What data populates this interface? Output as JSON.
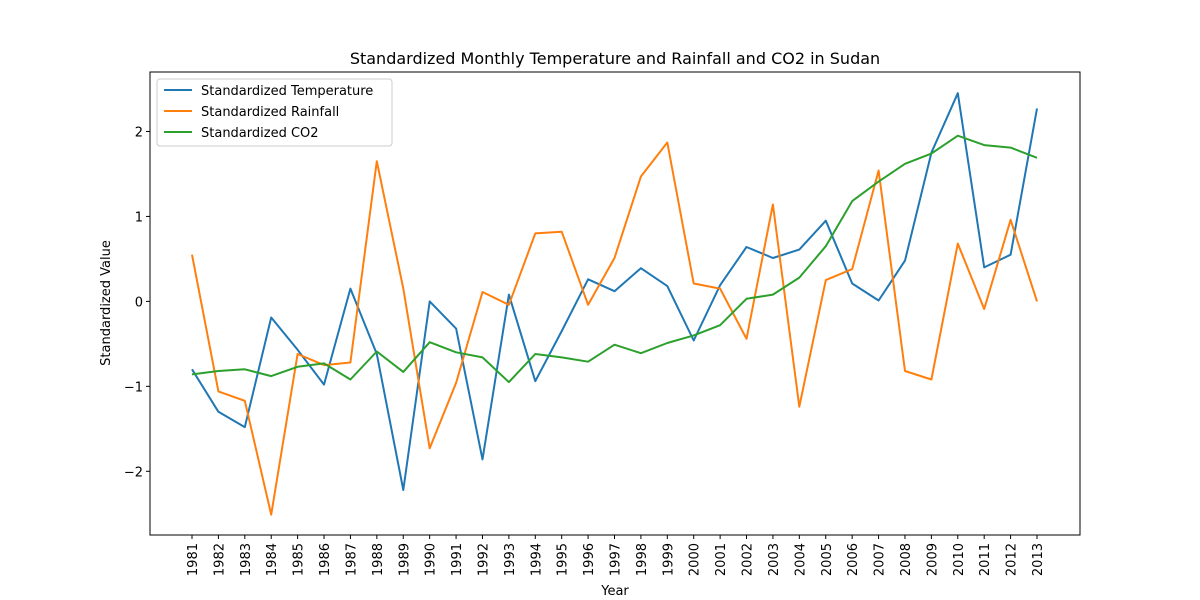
{
  "chart_data": {
    "type": "line",
    "title": "Standardized Monthly Temperature and Rainfall and CO2 in Sudan",
    "xlabel": "Year",
    "ylabel": "Standardized Value",
    "ylim": [
      -2.75,
      2.7
    ],
    "yticks": [
      {
        "value": -2,
        "label": "−2"
      },
      {
        "value": -1,
        "label": "−1"
      },
      {
        "value": 0,
        "label": "0"
      },
      {
        "value": 1,
        "label": "1"
      },
      {
        "value": 2,
        "label": "2"
      }
    ],
    "categories": [
      "1981",
      "1982",
      "1983",
      "1984",
      "1985",
      "1986",
      "1987",
      "1988",
      "1989",
      "1990",
      "1991",
      "1992",
      "1993",
      "1994",
      "1995",
      "1996",
      "1997",
      "1998",
      "1999",
      "2000",
      "2001",
      "2002",
      "2003",
      "2004",
      "2005",
      "2006",
      "2007",
      "2008",
      "2009",
      "2010",
      "2011",
      "2012",
      "2013"
    ],
    "legend_position": "upper-left",
    "grid": false,
    "series": [
      {
        "name": "Standardized Temperature",
        "color": "#1f77b4",
        "values": [
          -0.8,
          -1.3,
          -1.48,
          -0.19,
          -0.57,
          -0.98,
          0.15,
          -0.62,
          -2.22,
          0.0,
          -0.32,
          -1.86,
          0.08,
          -0.94,
          -0.35,
          0.26,
          0.12,
          0.39,
          0.18,
          -0.46,
          0.19,
          0.64,
          0.51,
          0.61,
          0.95,
          0.21,
          0.01,
          0.48,
          1.75,
          2.45,
          0.4,
          0.55,
          2.27
        ]
      },
      {
        "name": "Standardized Rainfall",
        "color": "#ff7f0e",
        "values": [
          0.55,
          -1.06,
          -1.17,
          -2.51,
          -0.62,
          -0.75,
          -0.72,
          1.65,
          0.15,
          -1.73,
          -0.96,
          0.11,
          -0.04,
          0.8,
          0.82,
          -0.04,
          0.51,
          1.47,
          1.87,
          0.21,
          0.15,
          -0.44,
          1.14,
          -1.24,
          0.25,
          0.38,
          1.54,
          -0.82,
          -0.92,
          0.68,
          -0.09,
          0.96,
          0.0
        ]
      },
      {
        "name": "Standardized CO2",
        "color": "#2ca02c",
        "values": [
          -0.86,
          -0.82,
          -0.8,
          -0.88,
          -0.77,
          -0.73,
          -0.92,
          -0.59,
          -0.83,
          -0.48,
          -0.6,
          -0.66,
          -0.95,
          -0.62,
          -0.66,
          -0.71,
          -0.51,
          -0.61,
          -0.49,
          -0.4,
          -0.28,
          0.03,
          0.08,
          0.28,
          0.65,
          1.18,
          1.41,
          1.62,
          1.74,
          1.95,
          1.84,
          1.81,
          1.69
        ]
      }
    ]
  }
}
